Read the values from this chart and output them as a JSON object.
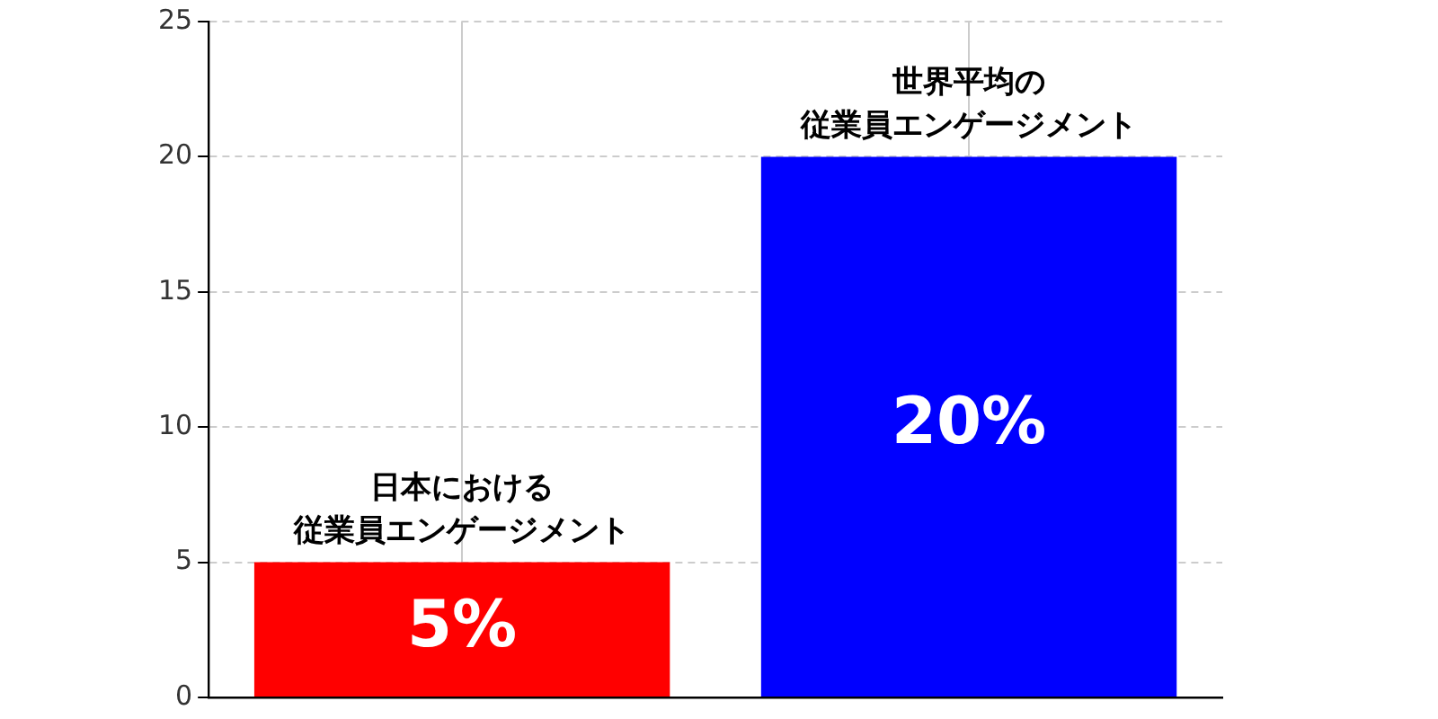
{
  "chart_data": {
    "type": "bar",
    "categories": [
      "日本における従業員エンゲージメント",
      "世界平均の従業員エンゲージメント"
    ],
    "values": [
      5,
      20
    ],
    "colors": [
      "#ff0000",
      "#0000ff"
    ],
    "value_labels": [
      "5%",
      "20%"
    ],
    "ylim": [
      0,
      25
    ],
    "yticks": [
      0,
      5,
      10,
      15,
      20,
      25
    ],
    "grid": true,
    "legend": false
  }
}
